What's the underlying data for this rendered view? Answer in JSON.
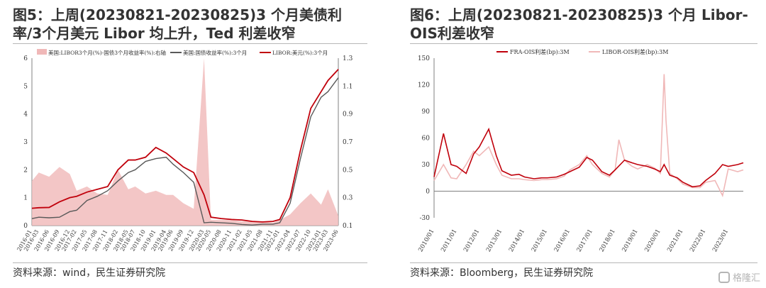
{
  "left": {
    "title": "图5：上周(20230821-20230825)3 个月美债利率/3个月美元 Libor 均上升，Ted 利差收窄",
    "source": "资料来源：wind，民生证券研究院"
  },
  "right": {
    "title": "图6：上周(20230821-20230825)3 个月 Libor-OIS利差收窄",
    "source": "资料来源：Bloomberg，民生证券研究院"
  },
  "watermark": "格隆汇",
  "colors": {
    "dark_red": "#c0000b",
    "pink": "#f0b8b8",
    "gray": "#595959"
  },
  "chart_data": [
    {
      "type": "line",
      "categories": [
        "2016-01",
        "2016-03",
        "2016-06",
        "2016-09",
        "2016-12",
        "2017-02",
        "2017-05",
        "2017-08",
        "2017-11",
        "2018-02",
        "2018-05",
        "2018-07",
        "2018-10",
        "2019-01",
        "2019-04",
        "2019-06",
        "2019-09",
        "2019-12",
        "2020-03",
        "2020-05",
        "2020-08",
        "2020-11",
        "2021-02",
        "2021-05",
        "2021-08",
        "2021-11",
        "2022-01",
        "2022-04",
        "2022-07",
        "2022-10",
        "2023-01",
        "2023-03",
        "2023-06"
      ],
      "series": [
        {
          "name": "美国:LIBOR3个月(%)-国债3个月收益率(%):右轴",
          "axis": "right",
          "style": "area",
          "values": [
            0.42,
            0.48,
            0.45,
            0.52,
            0.47,
            0.35,
            0.38,
            0.33,
            0.32,
            0.5,
            0.36,
            0.38,
            0.33,
            0.35,
            0.32,
            0.32,
            0.26,
            0.22,
            1.3,
            0.14,
            0.14,
            0.14,
            0.13,
            0.13,
            0.13,
            0.12,
            0.14,
            0.18,
            0.26,
            0.33,
            0.25,
            0.36,
            0.17
          ]
        },
        {
          "name": "美国:国债收益率(%):3个月",
          "axis": "left",
          "values": [
            0.25,
            0.3,
            0.28,
            0.3,
            0.5,
            0.55,
            0.9,
            1.05,
            1.25,
            1.6,
            1.9,
            2.0,
            2.3,
            2.4,
            2.45,
            2.2,
            1.9,
            1.55,
            0.1,
            0.12,
            0.1,
            0.08,
            0.04,
            0.02,
            0.05,
            0.05,
            0.1,
            0.8,
            2.4,
            3.9,
            4.6,
            4.8,
            5.3
          ]
        },
        {
          "name": "LIBOR:美元(%):3个月",
          "axis": "left",
          "values": [
            0.62,
            0.64,
            0.65,
            0.85,
            1.0,
            1.05,
            1.2,
            1.3,
            1.4,
            2.0,
            2.35,
            2.35,
            2.45,
            2.8,
            2.6,
            2.4,
            2.1,
            1.9,
            1.1,
            0.3,
            0.25,
            0.22,
            0.2,
            0.15,
            0.13,
            0.15,
            0.22,
            1.0,
            2.7,
            4.2,
            4.8,
            5.2,
            5.6
          ]
        }
      ],
      "ylim": [
        0,
        6
      ],
      "yticks": [
        0,
        1,
        2,
        3,
        4,
        5,
        6
      ],
      "y2lim": [
        0.1,
        1.3
      ],
      "y2ticks": [
        0.1,
        0.3,
        0.5,
        0.7,
        0.9,
        1.1,
        1.3
      ],
      "legend": "top"
    },
    {
      "type": "line",
      "categories": [
        "2010/01",
        "2011/01",
        "2012/01",
        "2013/01",
        "2014/01",
        "2015/01",
        "2016/01",
        "2017/01",
        "2018/01",
        "2019/01",
        "2020/01",
        "2021/01",
        "2022/01",
        "2023/01"
      ],
      "x_end": "2023/09",
      "series": [
        {
          "name": "FRA-OIS利差(bp):3M",
          "x": [
            "2010/01",
            "2010/06",
            "2010/10",
            "2011/01",
            "2011/06",
            "2011/10",
            "2012/01",
            "2012/06",
            "2012/10",
            "2013/01",
            "2013/06",
            "2013/10",
            "2014/01",
            "2014/06",
            "2014/10",
            "2015/01",
            "2015/06",
            "2015/10",
            "2016/01",
            "2016/06",
            "2016/10",
            "2017/01",
            "2017/06",
            "2017/10",
            "2018/01",
            "2018/06",
            "2018/10",
            "2019/01",
            "2019/06",
            "2019/10",
            "2020/01",
            "2020/03",
            "2020/06",
            "2020/10",
            "2021/01",
            "2021/06",
            "2021/10",
            "2022/01",
            "2022/06",
            "2022/10",
            "2023/01",
            "2023/06",
            "2023/09"
          ],
          "values": [
            16,
            65,
            30,
            28,
            20,
            42,
            50,
            70,
            40,
            23,
            18,
            19,
            16,
            14,
            15,
            15,
            16,
            19,
            22,
            27,
            38,
            35,
            22,
            18,
            24,
            35,
            32,
            30,
            28,
            25,
            22,
            30,
            18,
            15,
            10,
            5,
            6,
            12,
            20,
            30,
            28,
            30,
            32
          ]
        },
        {
          "name": "LIBOR-OIS利差(bp):3M",
          "x": [
            "2010/01",
            "2010/06",
            "2010/10",
            "2011/01",
            "2011/06",
            "2011/10",
            "2012/01",
            "2012/06",
            "2012/10",
            "2013/01",
            "2013/06",
            "2013/10",
            "2014/01",
            "2014/06",
            "2014/10",
            "2015/01",
            "2015/06",
            "2015/10",
            "2016/01",
            "2016/06",
            "2016/10",
            "2017/01",
            "2017/06",
            "2017/10",
            "2018/01",
            "2018/03",
            "2018/06",
            "2018/10",
            "2019/01",
            "2019/06",
            "2019/10",
            "2020/01",
            "2020/03",
            "2020/04",
            "2020/06",
            "2020/10",
            "2021/01",
            "2021/06",
            "2021/10",
            "2022/01",
            "2022/06",
            "2022/10",
            "2023/01",
            "2023/06",
            "2023/09"
          ],
          "values": [
            12,
            30,
            15,
            14,
            30,
            45,
            40,
            50,
            30,
            18,
            14,
            14,
            13,
            12,
            13,
            13,
            14,
            17,
            24,
            30,
            40,
            30,
            20,
            16,
            24,
            58,
            35,
            28,
            25,
            30,
            26,
            20,
            132,
            80,
            20,
            14,
            8,
            4,
            4,
            10,
            12,
            -5,
            25,
            22,
            24
          ]
        }
      ],
      "ylim": [
        -30,
        150
      ],
      "yticks": [
        -30,
        0,
        30,
        60,
        90,
        120,
        150
      ],
      "legend": "top"
    }
  ]
}
